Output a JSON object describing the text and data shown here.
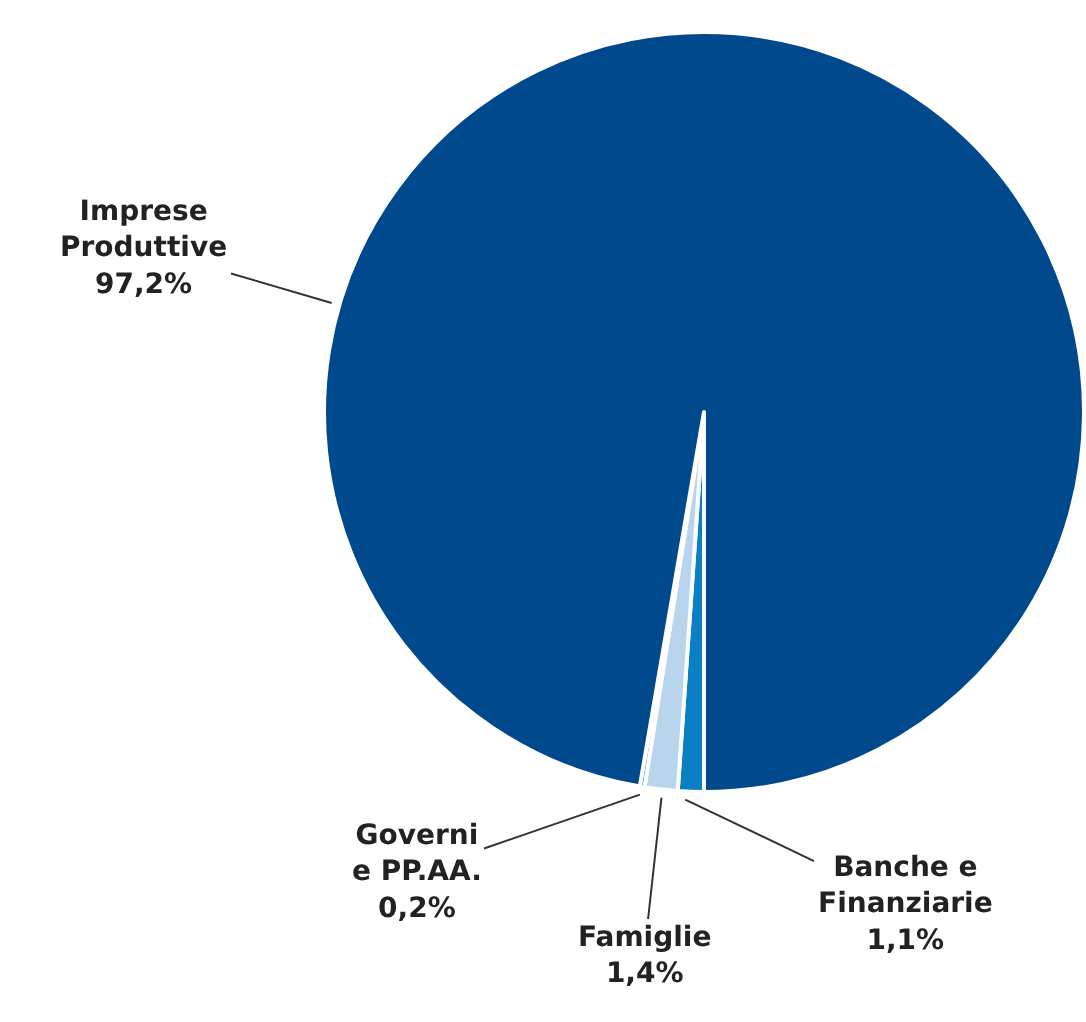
{
  "chart_data": {
    "type": "pie",
    "categories": [
      "Banche e Finanziarie",
      "Famiglie",
      "Governi e PP.AA.",
      "Imprese Produttive"
    ],
    "values": [
      1.1,
      1.4,
      0.2,
      97.2
    ],
    "value_labels": [
      "1,1%",
      "1,4%",
      "0,2%",
      "97,2%"
    ],
    "colors": [
      "#0a7fc4",
      "#b9d5ee",
      "#0a8fd2",
      "#00498d"
    ]
  }
}
